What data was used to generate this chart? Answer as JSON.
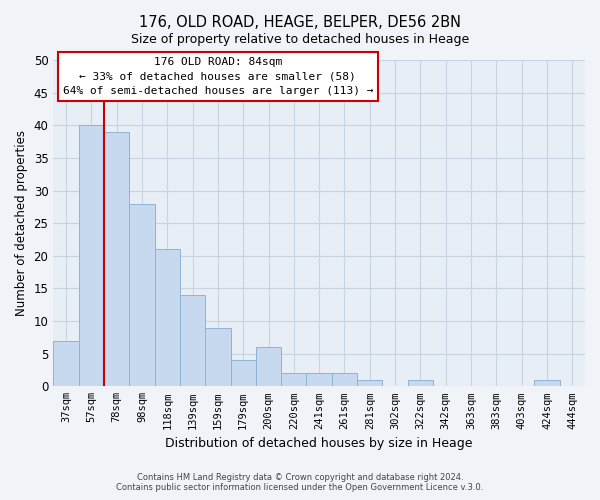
{
  "title": "176, OLD ROAD, HEAGE, BELPER, DE56 2BN",
  "subtitle": "Size of property relative to detached houses in Heage",
  "xlabel": "Distribution of detached houses by size in Heage",
  "ylabel": "Number of detached properties",
  "bar_labels": [
    "37sqm",
    "57sqm",
    "78sqm",
    "98sqm",
    "118sqm",
    "139sqm",
    "159sqm",
    "179sqm",
    "200sqm",
    "220sqm",
    "241sqm",
    "261sqm",
    "281sqm",
    "302sqm",
    "322sqm",
    "342sqm",
    "363sqm",
    "383sqm",
    "403sqm",
    "424sqm",
    "444sqm"
  ],
  "bar_values": [
    7,
    40,
    39,
    28,
    21,
    14,
    9,
    4,
    6,
    2,
    2,
    2,
    1,
    0,
    1,
    0,
    0,
    0,
    0,
    1,
    0
  ],
  "bar_color": "#c6d9ee",
  "bar_edge_color": "#8eb4d4",
  "marker_label": "176 OLD ROAD: 84sqm",
  "annotation_line1": "← 33% of detached houses are smaller (58)",
  "annotation_line2": "64% of semi-detached houses are larger (113) →",
  "ylim": [
    0,
    50
  ],
  "yticks": [
    0,
    5,
    10,
    15,
    20,
    25,
    30,
    35,
    40,
    45,
    50
  ],
  "marker_line_color": "#cc0000",
  "annotation_box_color": "#cc0000",
  "footer1": "Contains HM Land Registry data © Crown copyright and database right 2024.",
  "footer2": "Contains public sector information licensed under the Open Government Licence v.3.0.",
  "background_color": "#f0f4f8",
  "plot_bg_color": "#e8eef5",
  "grid_color": "#c8d4e0"
}
